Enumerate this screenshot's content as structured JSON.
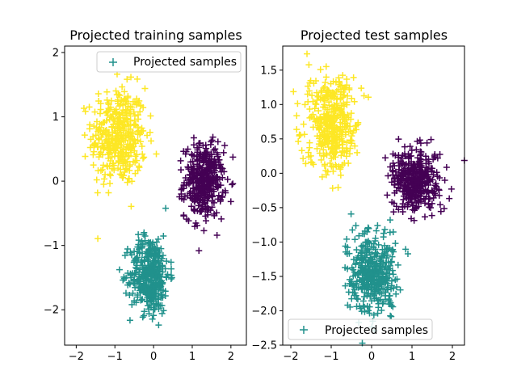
{
  "chart_data": [
    {
      "type": "scatter",
      "title": "Projected training samples",
      "xlabel": "",
      "ylabel": "",
      "xlim": [
        -2.3,
        2.4
      ],
      "ylim": [
        -2.55,
        2.1
      ],
      "xticks": [
        -2,
        -1,
        0,
        1,
        2
      ],
      "yticks": [
        -2,
        -1,
        0,
        1,
        2
      ],
      "marker": "+",
      "legend": {
        "label": "Projected samples",
        "position": "top-right"
      },
      "clusters": [
        {
          "color": "#fde725",
          "center": [
            -0.9,
            0.7
          ],
          "spread": [
            0.35,
            0.38
          ],
          "count": 400
        },
        {
          "color": "#440154",
          "center": [
            1.3,
            0.0
          ],
          "spread": [
            0.25,
            0.28
          ],
          "count": 400
        },
        {
          "color": "#21918c",
          "center": [
            -0.1,
            -1.45
          ],
          "spread": [
            0.25,
            0.3
          ],
          "count": 400
        }
      ]
    },
    {
      "type": "scatter",
      "title": "Projected test samples",
      "xlabel": "",
      "ylabel": "",
      "xlim": [
        -2.2,
        2.3
      ],
      "ylim": [
        -2.5,
        1.85
      ],
      "xticks": [
        -2,
        -1,
        0,
        1,
        2
      ],
      "yticks": [
        -2.5,
        -2.0,
        -1.5,
        -1.0,
        -0.5,
        0.0,
        0.5,
        1.0,
        1.5
      ],
      "marker": "+",
      "legend": {
        "label": "Projected samples",
        "position": "bottom-left"
      },
      "clusters": [
        {
          "color": "#fde725",
          "center": [
            -1.0,
            0.75
          ],
          "spread": [
            0.3,
            0.35
          ],
          "count": 400
        },
        {
          "color": "#440154",
          "center": [
            1.1,
            -0.1
          ],
          "spread": [
            0.3,
            0.22
          ],
          "count": 400
        },
        {
          "color": "#21918c",
          "center": [
            0.0,
            -1.45
          ],
          "spread": [
            0.28,
            0.28
          ],
          "count": 400
        }
      ]
    }
  ]
}
